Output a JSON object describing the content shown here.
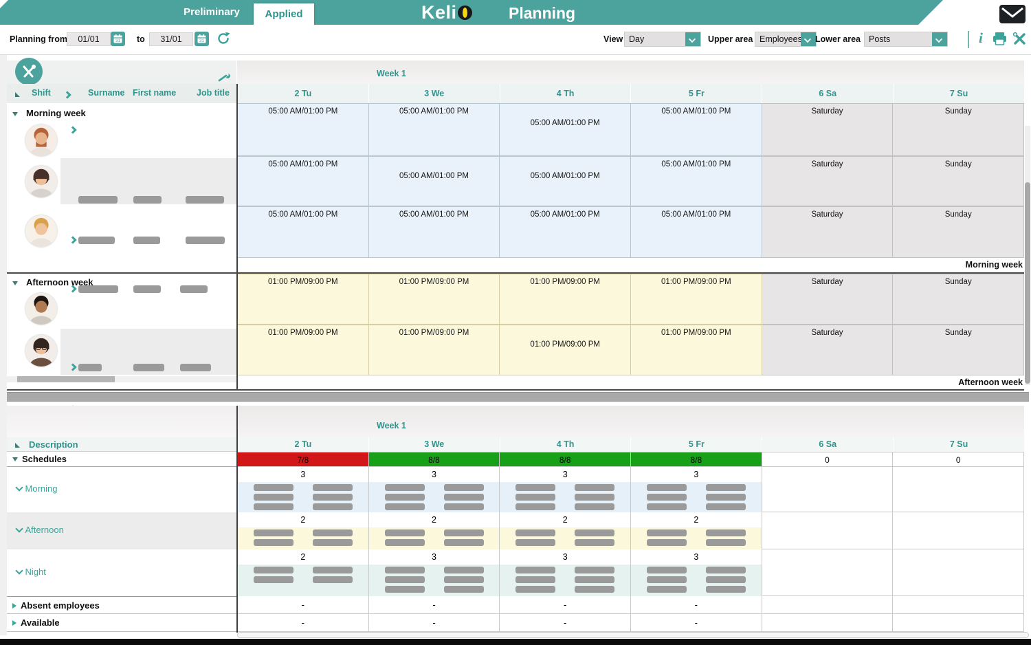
{
  "header": {
    "tab_preliminary": "Preliminary",
    "tab_applied": "Applied",
    "logo_prefix": "Keli",
    "title": "Planning"
  },
  "toolbar": {
    "planning_from": "Planning from",
    "from_value": "01/01",
    "to": "to",
    "to_value": "31/01",
    "view_label": "View",
    "view_value": "Day",
    "upper_label": "Upper area",
    "upper_value": "Employees",
    "lower_label": "Lower area",
    "lower_value": "Posts"
  },
  "upper": {
    "columns": {
      "shift": "Shift",
      "surname": "Surname",
      "first_name": "First name",
      "job_title": "Job title"
    },
    "week_label": "Week 1",
    "days": [
      "2 Tu",
      "3 We",
      "4 Th",
      "5 Fr",
      "6 Sa",
      "7 Su"
    ],
    "morning_group": {
      "label": "Morning week",
      "footer": "Morning week",
      "rows": [
        {
          "cells": [
            "05:00 AM/01:00 PM",
            "05:00 AM/01:00 PM",
            "05:00 AM/01:00 PM",
            "05:00 AM/01:00 PM",
            "Saturday",
            "Sunday"
          ]
        },
        {
          "cells": [
            "05:00 AM/01:00 PM",
            "05:00 AM/01:00 PM",
            "05:00 AM/01:00 PM",
            "05:00 AM/01:00 PM",
            "Saturday",
            "Sunday"
          ]
        },
        {
          "cells": [
            "05:00 AM/01:00 PM",
            "05:00 AM/01:00 PM",
            "05:00 AM/01:00 PM",
            "05:00 AM/01:00 PM",
            "Saturday",
            "Sunday"
          ]
        }
      ]
    },
    "afternoon_group": {
      "label": "Afternoon week",
      "footer": "Afternoon week",
      "rows": [
        {
          "cells": [
            "01:00 PM/09:00 PM",
            "01:00 PM/09:00 PM",
            "01:00 PM/09:00 PM",
            "01:00 PM/09:00 PM",
            "Saturday",
            "Sunday"
          ]
        },
        {
          "cells": [
            "01:00 PM/09:00 PM",
            "01:00 PM/09:00 PM",
            "01:00 PM/09:00 PM",
            "01:00 PM/09:00 PM",
            "Saturday",
            "Sunday"
          ]
        }
      ]
    }
  },
  "lower": {
    "description": "Description",
    "week_label": "Week 1",
    "days": [
      "2 Tu",
      "3 We",
      "4 Th",
      "5 Fr",
      "6 Sa",
      "7 Su"
    ],
    "rows": {
      "schedules": {
        "label": "Schedules",
        "values": [
          "7/8",
          "8/8",
          "8/8",
          "8/8",
          "0",
          "0"
        ],
        "colors": [
          "#D11717",
          "#18A018",
          "#18A018",
          "#18A018",
          "#FFFFFF",
          "#FFFFFF"
        ]
      },
      "morning": {
        "label": "Morning",
        "counts": [
          "3",
          "3",
          "3",
          "3"
        ],
        "bars": [
          3,
          3,
          3,
          3
        ]
      },
      "afternoon": {
        "label": "Afternoon",
        "counts": [
          "2",
          "2",
          "2",
          "2"
        ],
        "bars": [
          2,
          2,
          2,
          2
        ]
      },
      "night": {
        "label": "Night",
        "counts": [
          "2",
          "3",
          "3",
          "3"
        ],
        "bars": [
          2,
          3,
          3,
          3
        ]
      },
      "absent": {
        "label": "Absent employees",
        "values": [
          "-",
          "-",
          "-",
          "-"
        ]
      },
      "available": {
        "label": "Available",
        "values": [
          "-",
          "-",
          "-",
          "-"
        ]
      }
    }
  },
  "colors": {
    "teal": "#4CA29C",
    "teal_text": "#2F948C",
    "red": "#D11717",
    "green": "#18A018",
    "bar_gray": "#9A9A9A"
  }
}
